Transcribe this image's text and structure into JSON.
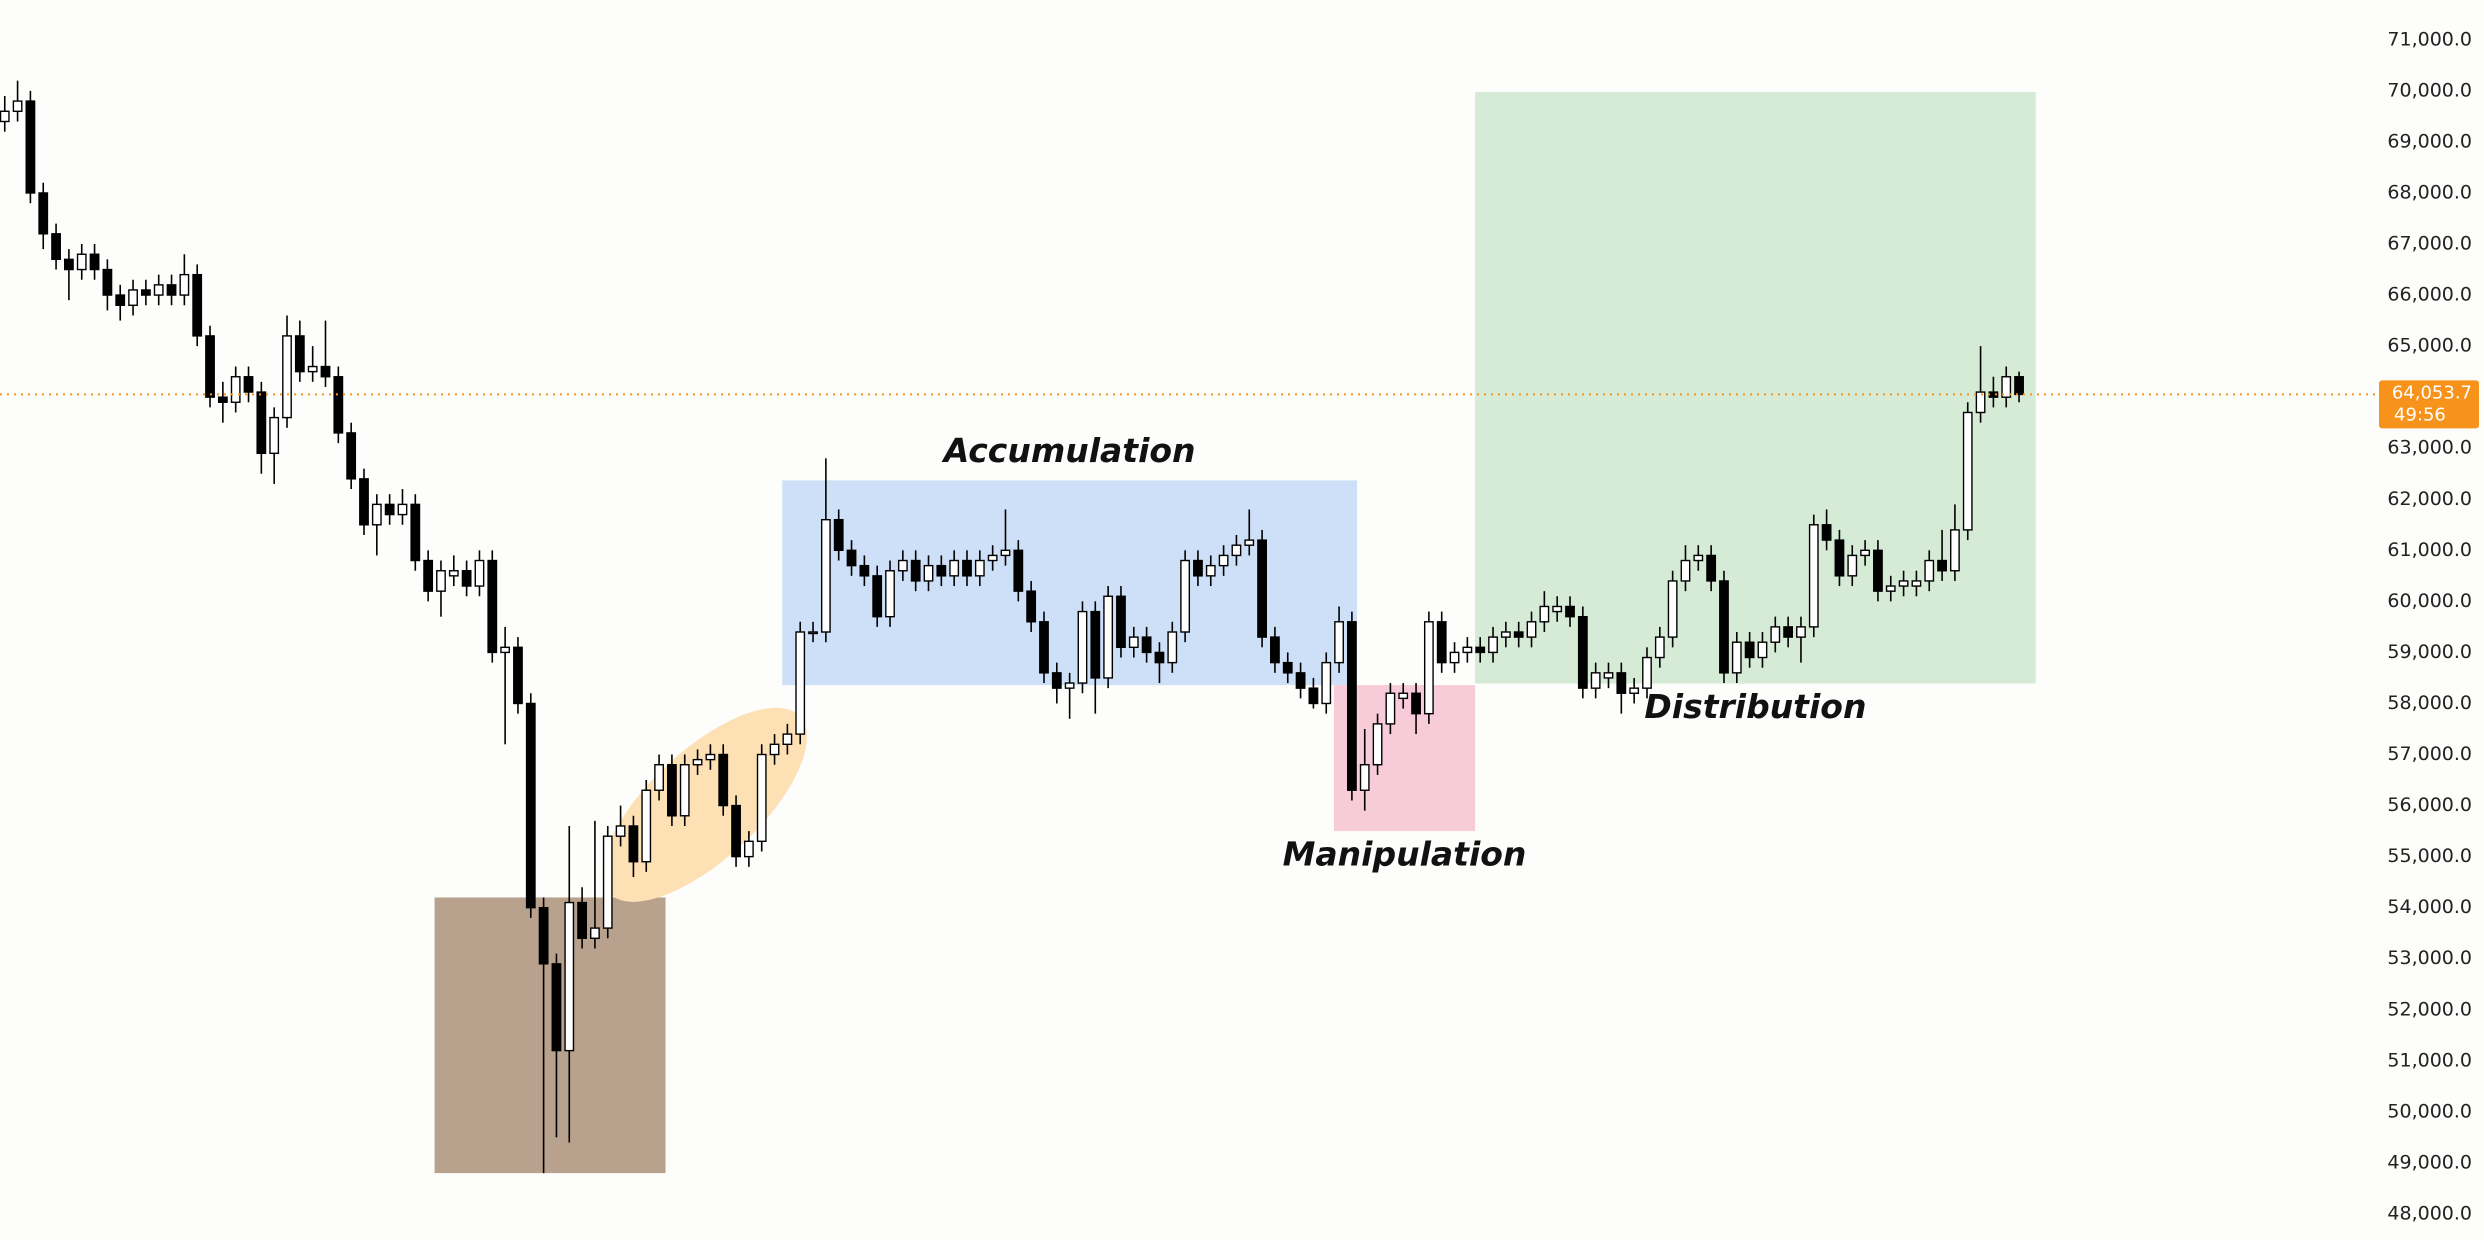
{
  "chart_data": {
    "type": "candlestick",
    "background": "#fdfdfb",
    "up_color": "#ffffff",
    "down_color": "#000000",
    "wick_color": "#000000",
    "open": [
      69400,
      69600,
      69800,
      68000,
      67200,
      66700,
      66500,
      66800,
      66500,
      66000,
      65800,
      66100,
      66000,
      66200,
      66000,
      66400,
      65200,
      64000,
      63900,
      64400,
      64100,
      62900,
      63600,
      65200,
      64500,
      64600,
      64400,
      63300,
      62400,
      61500,
      61900,
      61700,
      61900,
      60800,
      60200,
      60500,
      60600,
      60300,
      60800,
      59000,
      59100,
      58000,
      54000,
      52900,
      51200,
      54100,
      53400,
      53600,
      55400,
      55600,
      54900,
      56300,
      56800,
      55800,
      56800,
      56900,
      57000,
      56000,
      55000,
      55300,
      57000,
      57200,
      57400,
      59400,
      59400,
      61600,
      61000,
      60700,
      60500,
      59700,
      60600,
      60800,
      60400,
      60700,
      60500,
      60800,
      60500,
      60800,
      60900,
      61000,
      60200,
      59600,
      58600,
      58300,
      58400,
      59800,
      58500,
      60100,
      59100,
      59300,
      59000,
      58800,
      59400,
      60800,
      60500,
      60700,
      60900,
      61100,
      61200,
      59300,
      58800,
      58600,
      58300,
      58000,
      58800,
      59600,
      56300,
      56800,
      57600,
      58100,
      58200,
      57800,
      59600,
      58800,
      59000,
      59100,
      59000,
      59300,
      59400,
      59300,
      59600,
      59800,
      59900,
      59700,
      58300,
      58500,
      58600,
      58200,
      58300,
      58900,
      59300,
      60400,
      60800,
      60900,
      60400,
      58600,
      59200,
      58900,
      59200,
      59500,
      59300,
      59500,
      61500,
      61200,
      60500,
      60900,
      61000,
      60200,
      60300,
      60300,
      60400,
      60800,
      60600,
      61400,
      63700,
      64100,
      64000,
      64400
    ],
    "high": [
      69900,
      70200,
      70000,
      68200,
      67400,
      66900,
      67000,
      67000,
      66700,
      66200,
      66300,
      66300,
      66400,
      66400,
      66800,
      66600,
      65400,
      64300,
      64600,
      64600,
      64300,
      63800,
      65600,
      65500,
      65000,
      65500,
      64600,
      63500,
      62600,
      62100,
      62100,
      62200,
      62100,
      61000,
      60800,
      60900,
      60800,
      61000,
      61000,
      59500,
      59300,
      58200,
      54200,
      53100,
      55600,
      54400,
      55700,
      55600,
      56000,
      55800,
      56500,
      57000,
      57000,
      57000,
      57100,
      57200,
      57200,
      56200,
      55500,
      57200,
      57400,
      57600,
      59600,
      59600,
      62800,
      61800,
      61200,
      60900,
      60700,
      60800,
      61000,
      61000,
      60900,
      60900,
      61000,
      61000,
      61000,
      61100,
      61800,
      61200,
      60400,
      59800,
      58800,
      58600,
      60000,
      60000,
      60300,
      60300,
      59500,
      59500,
      59200,
      59600,
      61000,
      61000,
      60900,
      61100,
      61300,
      61800,
      61400,
      59500,
      59000,
      58800,
      58500,
      59000,
      59900,
      59800,
      57500,
      57800,
      58400,
      58400,
      58400,
      59800,
      59800,
      59200,
      59300,
      59300,
      59500,
      59600,
      59600,
      59800,
      60200,
      60100,
      60100,
      59900,
      58800,
      58800,
      58800,
      58500,
      59100,
      59500,
      60600,
      61100,
      61100,
      61100,
      60600,
      59400,
      59400,
      59400,
      59700,
      59700,
      59700,
      61700,
      61800,
      61400,
      61100,
      61200,
      61200,
      60500,
      60600,
      60600,
      61000,
      61400,
      61900,
      63900,
      65000,
      64400,
      64600,
      64500
    ],
    "low": [
      69200,
      69400,
      67800,
      66900,
      66500,
      65900,
      66300,
      66300,
      65700,
      65500,
      65600,
      65800,
      65800,
      65800,
      65800,
      65000,
      63800,
      63500,
      63700,
      63900,
      62500,
      62300,
      63400,
      64300,
      64300,
      64200,
      63100,
      62200,
      61300,
      60900,
      61500,
      61500,
      60600,
      60000,
      59700,
      60300,
      60100,
      60100,
      58800,
      57200,
      57800,
      53800,
      48800,
      49500,
      49400,
      53200,
      53200,
      53400,
      55200,
      54600,
      54700,
      56100,
      55600,
      55600,
      56600,
      56700,
      55800,
      54800,
      54800,
      55100,
      56800,
      57000,
      57200,
      59200,
      59200,
      60800,
      60500,
      60300,
      59500,
      59500,
      60400,
      60200,
      60200,
      60300,
      60300,
      60300,
      60300,
      60600,
      60700,
      60000,
      59400,
      58400,
      58000,
      57700,
      58200,
      57800,
      58300,
      58900,
      58900,
      58800,
      58400,
      58600,
      59200,
      60300,
      60300,
      60500,
      60700,
      60900,
      59100,
      58600,
      58400,
      58100,
      57900,
      57800,
      58600,
      56100,
      55900,
      56600,
      57400,
      57900,
      57400,
      57600,
      58600,
      58600,
      58800,
      58800,
      58800,
      59100,
      59100,
      59100,
      59400,
      59600,
      59500,
      58100,
      58100,
      58300,
      57800,
      58000,
      58100,
      58700,
      59100,
      60200,
      60600,
      60200,
      58400,
      58400,
      58700,
      58700,
      59000,
      59100,
      58800,
      59300,
      61000,
      60300,
      60300,
      60700,
      60000,
      60000,
      60100,
      60100,
      60200,
      60400,
      60400,
      61200,
      63500,
      63800,
      63800,
      63900
    ],
    "close": [
      69600,
      69800,
      68000,
      67200,
      66700,
      66500,
      66800,
      66500,
      66000,
      65800,
      66100,
      66000,
      66200,
      66000,
      66400,
      65200,
      64000,
      63900,
      64400,
      64100,
      62900,
      63600,
      65200,
      64500,
      64600,
      64400,
      63300,
      62400,
      61500,
      61900,
      61700,
      61900,
      60800,
      60200,
      60600,
      60600,
      60300,
      60800,
      59000,
      59100,
      58000,
      54000,
      52900,
      51200,
      54100,
      53400,
      53600,
      55400,
      55600,
      54900,
      56300,
      56800,
      55800,
      56800,
      56900,
      57000,
      56000,
      55000,
      55300,
      57000,
      57200,
      57400,
      59400,
      59400,
      61600,
      61000,
      60700,
      60500,
      59700,
      60600,
      60800,
      60400,
      60700,
      60500,
      60800,
      60500,
      60800,
      60900,
      61000,
      60200,
      59600,
      58600,
      58300,
      58400,
      59800,
      58500,
      60100,
      59100,
      59300,
      59000,
      58800,
      59400,
      60800,
      60500,
      60700,
      60900,
      61100,
      61200,
      59300,
      58800,
      58600,
      58300,
      58000,
      58800,
      59600,
      56300,
      56800,
      57600,
      58200,
      58200,
      57800,
      59600,
      58800,
      59000,
      59100,
      59000,
      59300,
      59400,
      59300,
      59600,
      59900,
      59900,
      59700,
      58300,
      58600,
      58600,
      58200,
      58300,
      58900,
      59300,
      60400,
      60800,
      60900,
      60400,
      58600,
      59200,
      58900,
      59200,
      59500,
      59300,
      59500,
      61500,
      61200,
      60500,
      60900,
      61000,
      60200,
      60300,
      60400,
      60400,
      60800,
      60600,
      61400,
      63700,
      64100,
      64000,
      64400,
      64053.7
    ],
    "ylim": [
      47490,
      71780
    ],
    "yticks": [
      {
        "value": 48000,
        "label": "48,000.0"
      },
      {
        "value": 49000,
        "label": "49,000.0"
      },
      {
        "value": 50000,
        "label": "50,000.0"
      },
      {
        "value": 51000,
        "label": "51,000.0"
      },
      {
        "value": 52000,
        "label": "52,000.0"
      },
      {
        "value": 53000,
        "label": "53,000.0"
      },
      {
        "value": 54000,
        "label": "54,000.0"
      },
      {
        "value": 55000,
        "label": "55,000.0"
      },
      {
        "value": 56000,
        "label": "56,000.0"
      },
      {
        "value": 57000,
        "label": "57,000.0"
      },
      {
        "value": 58000,
        "label": "58,000.0"
      },
      {
        "value": 59000,
        "label": "59,000.0"
      },
      {
        "value": 60000,
        "label": "60,000.0"
      },
      {
        "value": 61000,
        "label": "61,000.0"
      },
      {
        "value": 62000,
        "label": "62,000.0"
      },
      {
        "value": 63000,
        "label": "63,000.0"
      },
      {
        "value": 64000,
        "label": "64,000.0"
      },
      {
        "value": 65000,
        "label": "65,000.0"
      },
      {
        "value": 66000,
        "label": "66,000.0"
      },
      {
        "value": 67000,
        "label": "67,000.0"
      },
      {
        "value": 68000,
        "label": "68,000.0"
      },
      {
        "value": 69000,
        "label": "69,000.0"
      },
      {
        "value": 70000,
        "label": "70,000.0"
      },
      {
        "value": 71000,
        "label": "71,000.0"
      }
    ],
    "last_price": {
      "value": 64053.7,
      "label": "64,053.7",
      "countdown": "49:56",
      "color": "#f7931a"
    },
    "zones": [
      {
        "shape": "rect",
        "color": "#b9a28d",
        "start": 33.5,
        "end": 51.5,
        "high": 54200,
        "low": 48800
      },
      {
        "shape": "ellipse",
        "color": "#fde0b4",
        "start": 46.9,
        "end": 62.2,
        "high": 57800,
        "low": 54230
      },
      {
        "shape": "rect",
        "color": "#cde0f7",
        "start": 60.6,
        "end": 105.4,
        "high": 62370,
        "low": 58360,
        "label": "Accumulation",
        "label_position": "top"
      },
      {
        "shape": "rect",
        "color": "#f8cbd9",
        "start": 103.6,
        "end": 114.6,
        "high": 58360,
        "low": 55500,
        "label": "Manipulation",
        "label_position": "bottom"
      },
      {
        "shape": "rect",
        "color": "#d5ebd6",
        "start": 114.6,
        "end": 158.3,
        "high": 69980,
        "low": 58390,
        "label": "Distribution",
        "label_position": "bottom"
      }
    ]
  }
}
